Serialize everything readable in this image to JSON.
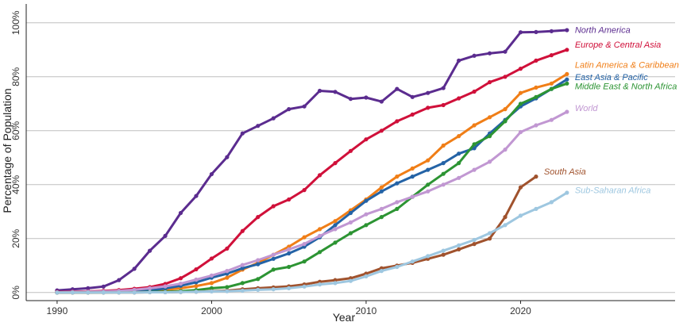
{
  "chart_data": {
    "type": "line",
    "title": "",
    "xlabel": "Year",
    "ylabel": "Percentage of Population",
    "xlim": [
      1988,
      2030
    ],
    "ylim": [
      -3,
      107
    ],
    "xticks": [
      1990,
      2000,
      2010,
      2020
    ],
    "xtick_labels": [
      "1990",
      "2000",
      "2010",
      "2020"
    ],
    "yticks": [
      0,
      20,
      40,
      60,
      80,
      100
    ],
    "ytick_labels": [
      "0%",
      "20%",
      "40%",
      "60%",
      "80%",
      "100%"
    ],
    "grid": "horizontal",
    "legend": "inline labels at line ends",
    "series": [
      {
        "name": "North America",
        "color": "#5b2c8f",
        "label_y": 97.5,
        "x": [
          1990,
          1991,
          1992,
          1993,
          1994,
          1995,
          1996,
          1997,
          1998,
          1999,
          2000,
          2001,
          2002,
          2003,
          2004,
          2005,
          2006,
          2007,
          2008,
          2009,
          2010,
          2011,
          2012,
          2013,
          2014,
          2015,
          2016,
          2017,
          2018,
          2019,
          2020,
          2021,
          2022,
          2023
        ],
        "values": [
          0.8,
          1.2,
          1.6,
          2.2,
          4.6,
          8.8,
          15.5,
          21,
          29.5,
          35.8,
          43.9,
          50.2,
          59,
          61.8,
          64.6,
          68,
          69,
          74.8,
          74.4,
          71.8,
          72.3,
          70.8,
          75.5,
          72.5,
          74,
          75.8,
          86,
          87.8,
          88.7,
          89.3,
          96.5,
          96.6,
          96.9,
          97.3
        ]
      },
      {
        "name": "Europe & Central Asia",
        "color": "#d0103a",
        "label_y": 92,
        "x": [
          1990,
          1991,
          1992,
          1993,
          1994,
          1995,
          1996,
          1997,
          1998,
          1999,
          2000,
          2001,
          2002,
          2003,
          2004,
          2005,
          2006,
          2007,
          2008,
          2009,
          2010,
          2011,
          2012,
          2013,
          2014,
          2015,
          2016,
          2017,
          2018,
          2019,
          2020,
          2021,
          2022,
          2023
        ],
        "values": [
          0.2,
          0.3,
          0.4,
          0.6,
          0.9,
          1.4,
          2,
          3.2,
          5.3,
          8.6,
          12.6,
          16.3,
          22.8,
          28,
          32,
          34.5,
          38,
          43.5,
          48,
          52.5,
          56.8,
          60,
          63.5,
          66,
          68.5,
          69.5,
          72,
          74.5,
          78,
          80,
          83,
          86,
          88,
          90
        ]
      },
      {
        "name": "Latin America & Caribbean",
        "color": "#f07e17",
        "label_y": 84.5,
        "x": [
          1990,
          1991,
          1992,
          1993,
          1994,
          1995,
          1996,
          1997,
          1998,
          1999,
          2000,
          2001,
          2002,
          2003,
          2004,
          2005,
          2006,
          2007,
          2008,
          2009,
          2010,
          2011,
          2012,
          2013,
          2014,
          2015,
          2016,
          2017,
          2018,
          2019,
          2020,
          2021,
          2022,
          2023
        ],
        "values": [
          0,
          0,
          0,
          0.1,
          0.2,
          0.3,
          0.6,
          1,
          1.6,
          2.4,
          3.5,
          5.5,
          8.5,
          11,
          14,
          17,
          20.5,
          23.5,
          26.5,
          30.5,
          34.5,
          39,
          43,
          46,
          49,
          54.5,
          58,
          62,
          65,
          68,
          74,
          76,
          77.5,
          81
        ]
      },
      {
        "name": "East Asia & Pacific",
        "color": "#2463a6",
        "label_y": 80,
        "x": [
          1990,
          1991,
          1992,
          1993,
          1994,
          1995,
          1996,
          1997,
          1998,
          1999,
          2000,
          2001,
          2002,
          2003,
          2004,
          2005,
          2006,
          2007,
          2008,
          2009,
          2010,
          2011,
          2012,
          2013,
          2014,
          2015,
          2016,
          2017,
          2018,
          2019,
          2020,
          2021,
          2022,
          2023
        ],
        "values": [
          0,
          0,
          0,
          0.1,
          0.2,
          0.4,
          0.8,
          1.5,
          2.5,
          3.8,
          5.5,
          7,
          9,
          10.5,
          12.5,
          14.5,
          17,
          20.5,
          25,
          29.5,
          34,
          37.5,
          40.5,
          43,
          45.5,
          48,
          51.5,
          53.5,
          59,
          64,
          69,
          72,
          75.5,
          79
        ]
      },
      {
        "name": "Middle East & North Africa",
        "color": "#2c9433",
        "label_y": 76.5,
        "x": [
          1990,
          1991,
          1992,
          1993,
          1994,
          1995,
          1996,
          1997,
          1998,
          1999,
          2000,
          2001,
          2002,
          2003,
          2004,
          2005,
          2006,
          2007,
          2008,
          2009,
          2010,
          2011,
          2012,
          2013,
          2014,
          2015,
          2016,
          2017,
          2018,
          2019,
          2020,
          2021,
          2022,
          2023
        ],
        "values": [
          0,
          0,
          0,
          0,
          0.1,
          0.1,
          0.2,
          0.3,
          0.5,
          0.9,
          1.6,
          2,
          3.5,
          5,
          8.5,
          9.5,
          11.5,
          15,
          18.5,
          22,
          25,
          28,
          31,
          35.5,
          40,
          44,
          48,
          55,
          58,
          63.5,
          70,
          72.5,
          75.5,
          77.5
        ]
      },
      {
        "name": "World",
        "color": "#c197d2",
        "label_y": 68.5,
        "x": [
          1990,
          1991,
          1992,
          1993,
          1994,
          1995,
          1996,
          1997,
          1998,
          1999,
          2000,
          2001,
          2002,
          2003,
          2004,
          2005,
          2006,
          2007,
          2008,
          2009,
          2010,
          2011,
          2012,
          2013,
          2014,
          2015,
          2016,
          2017,
          2018,
          2019,
          2020,
          2021,
          2022,
          2023
        ],
        "values": [
          0.1,
          0.2,
          0.3,
          0.4,
          0.6,
          1,
          1.6,
          2.3,
          3.3,
          4.8,
          6.3,
          8,
          10.2,
          12,
          14,
          16,
          18,
          21,
          23.5,
          26,
          29,
          31,
          33.5,
          35.5,
          37.5,
          40,
          42.5,
          45.5,
          48.5,
          53,
          59.5,
          62,
          64,
          67
        ]
      },
      {
        "name": "South Asia",
        "color": "#a0522d",
        "label_y": 45,
        "x": [
          1990,
          1991,
          1992,
          1993,
          1994,
          1995,
          1996,
          1997,
          1998,
          1999,
          2000,
          2001,
          2002,
          2003,
          2004,
          2005,
          2006,
          2007,
          2008,
          2009,
          2010,
          2011,
          2012,
          2013,
          2014,
          2015,
          2016,
          2017,
          2018,
          2019,
          2020,
          2021
        ],
        "values": [
          0,
          0,
          0,
          0,
          0,
          0,
          0.1,
          0.1,
          0.2,
          0.3,
          0.5,
          0.7,
          1.2,
          1.6,
          1.9,
          2.3,
          3,
          4,
          4.6,
          5.3,
          7,
          9,
          10,
          11,
          12.5,
          14,
          16,
          18,
          20,
          28,
          39,
          43
        ]
      },
      {
        "name": "Sub-Saharan Africa",
        "color": "#9ec7e0",
        "label_y": 38,
        "x": [
          1990,
          1991,
          1992,
          1993,
          1994,
          1995,
          1996,
          1997,
          1998,
          1999,
          2000,
          2001,
          2002,
          2003,
          2004,
          2005,
          2006,
          2007,
          2008,
          2009,
          2010,
          2011,
          2012,
          2013,
          2014,
          2015,
          2016,
          2017,
          2018,
          2019,
          2020,
          2021,
          2022,
          2023
        ],
        "values": [
          0,
          0,
          0,
          0,
          0,
          0,
          0.1,
          0.1,
          0.2,
          0.3,
          0.4,
          0.5,
          0.7,
          1,
          1.2,
          1.6,
          2.2,
          3,
          3.5,
          4.3,
          6,
          8,
          9.5,
          11.5,
          13.5,
          15.5,
          17.5,
          19.5,
          22,
          25,
          28.5,
          31,
          33.5,
          37
        ]
      }
    ]
  }
}
